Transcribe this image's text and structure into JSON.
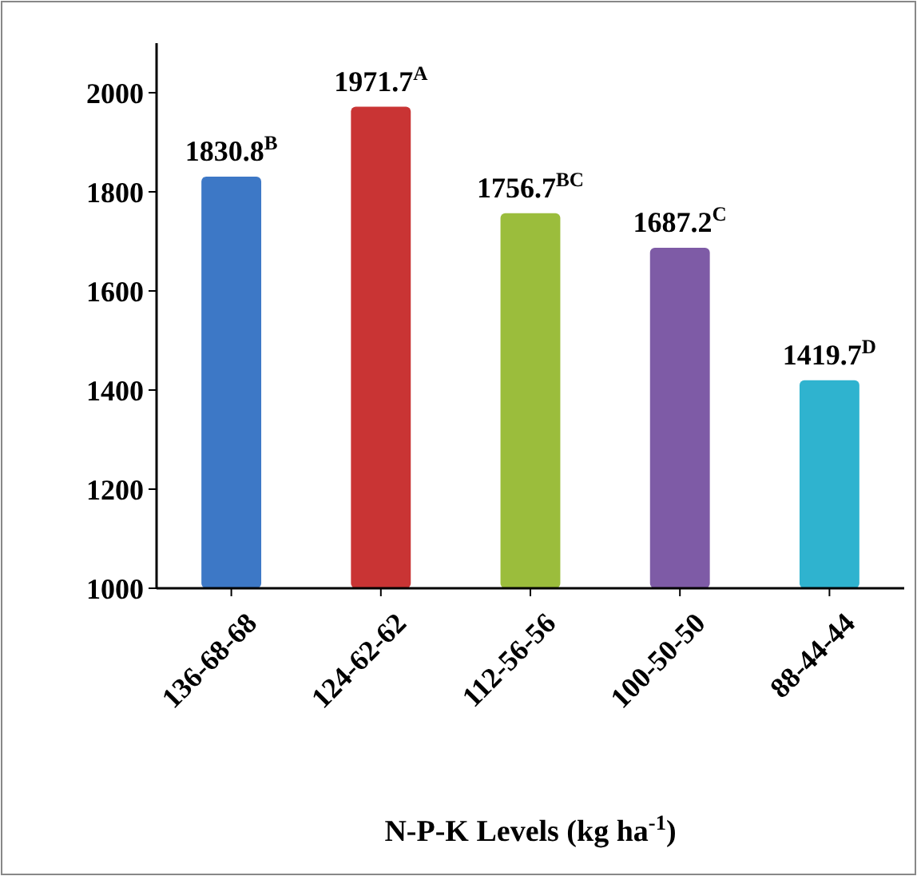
{
  "chart_data": {
    "type": "bar",
    "xlabel": "N-P-K Levels (kg ha$^{-1}$)",
    "categories": [
      "136-68-68",
      "124-62-62",
      "112-56-56",
      "100-50-50",
      "88-44-44"
    ],
    "values": [
      1830.8,
      1971.7,
      1756.7,
      1687.2,
      1419.7
    ],
    "colors": [
      "#3d78c6",
      "#c93434",
      "#9bbd3c",
      "#7e5ba6",
      "#2fb3cf"
    ],
    "value_labels": [
      "1830.8$^{B}$",
      "1971.7$^{A}$",
      "1756.7$^{BC}$",
      "1687.2$^{C}$",
      "1419.7$^{D}$"
    ],
    "ylim": [
      1000,
      2100
    ],
    "yticks": [
      1000,
      1200,
      1400,
      1600,
      1800,
      2000
    ],
    "grid": false
  }
}
